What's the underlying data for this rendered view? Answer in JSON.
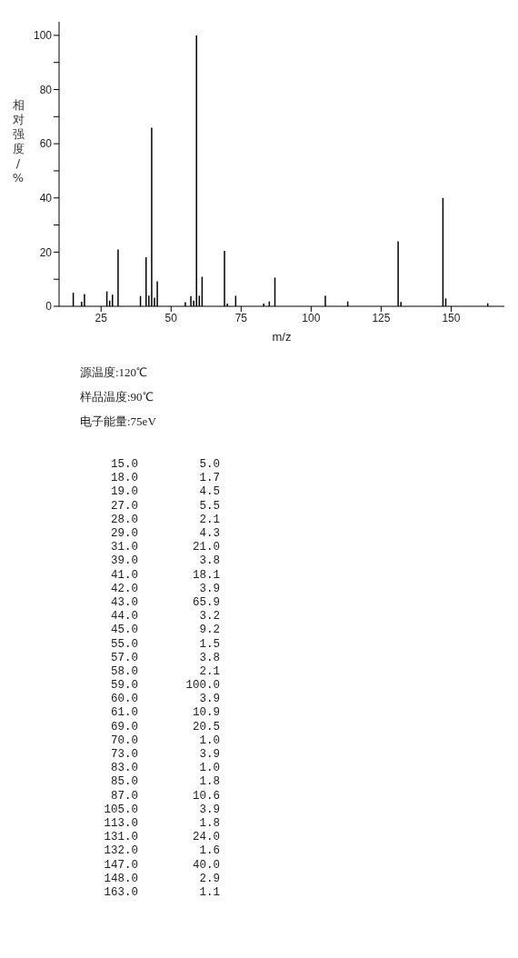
{
  "chart_data": {
    "type": "bar",
    "xlabel": "m/z",
    "ylabel": "相对强度/%",
    "x": [
      15,
      18,
      19,
      27,
      28,
      29,
      31,
      39,
      41,
      42,
      43,
      44,
      45,
      55,
      57,
      58,
      59,
      60,
      61,
      69,
      70,
      73,
      83,
      85,
      87,
      105,
      113,
      131,
      132,
      147,
      148,
      163
    ],
    "values": [
      5.0,
      1.7,
      4.5,
      5.5,
      2.1,
      4.3,
      21.0,
      3.8,
      18.1,
      3.9,
      65.9,
      3.2,
      9.2,
      1.5,
      3.8,
      2.1,
      100.0,
      3.9,
      10.9,
      20.5,
      1.0,
      3.9,
      1.0,
      1.8,
      10.6,
      3.9,
      1.8,
      24.0,
      1.6,
      40.0,
      2.9,
      1.1
    ],
    "color": "#000000",
    "xlim": [
      10,
      169
    ],
    "xticks": [
      25,
      50,
      75,
      100,
      125,
      150
    ],
    "ylim": [
      0,
      105
    ],
    "yticks": [
      0,
      {
        "value": 10,
        "label": null
      },
      20,
      {
        "value": 30,
        "label": null
      },
      40,
      {
        "value": 50,
        "label": null
      },
      60,
      {
        "value": 70,
        "label": null
      },
      80,
      {
        "value": 90,
        "label": null
      },
      100
    ],
    "grid": false,
    "legend": false,
    "annotations": [
      "源温度:120℃",
      "样品温度:90℃",
      "电子能量:75eV",
      "15.0",
      "5.0",
      "18.0",
      "1.7",
      "19.0",
      "4.5",
      "27.0",
      "5.5",
      "28.0",
      "2.1",
      "29.0",
      "4.3",
      "31.0",
      "21.0",
      "39.0",
      "3.8",
      "41.0",
      "18.1",
      "42.0",
      "3.9",
      "43.0",
      "65.9",
      "44.0",
      "3.2",
      "45.0",
      "9.2",
      "55.0",
      "1.5",
      "57.0",
      "3.8",
      "58.0",
      "2.1",
      "59.0",
      "100.0",
      "60.0",
      "3.9",
      "61.0",
      "10.9",
      "69.0",
      "20.5",
      "70.0",
      "1.0",
      "73.0",
      "3.9",
      "83.0",
      "1.0",
      "85.0",
      "1.8",
      "87.0",
      "10.6",
      "105.0",
      "3.9",
      "113.0",
      "1.8",
      "131.0",
      "24.0",
      "132.0",
      "1.6",
      "147.0",
      "40.0",
      "148.0",
      "2.9",
      "163.0",
      "1.1"
    ]
  }
}
